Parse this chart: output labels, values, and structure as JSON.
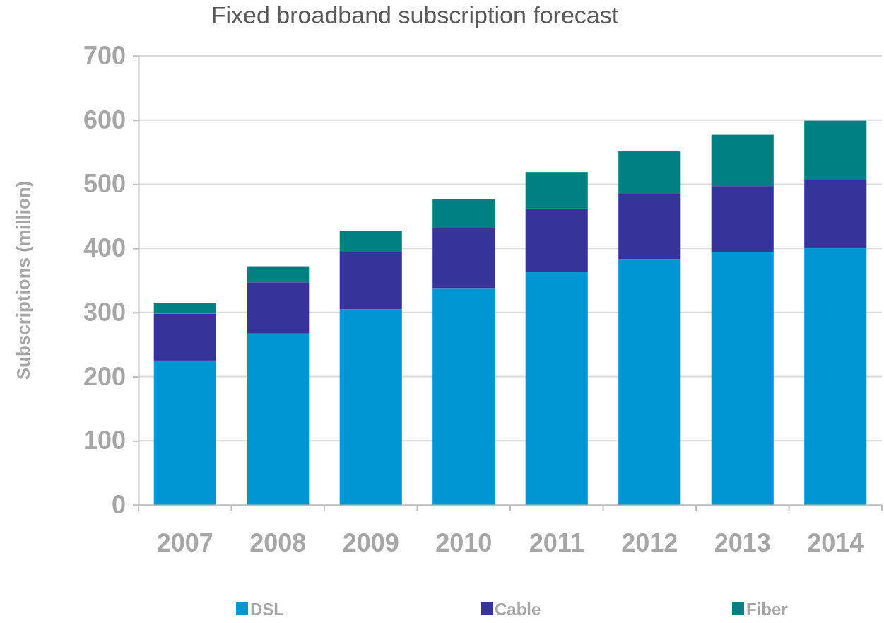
{
  "chart_data": {
    "type": "bar",
    "title": "Fixed broadband subscription forecast",
    "ylabel": "Subscriptions (million)",
    "categories": [
      "2007",
      "2008",
      "2009",
      "2010",
      "2011",
      "2012",
      "2013",
      "2014"
    ],
    "stacked": true,
    "series": [
      {
        "name": "DSL",
        "color": "#0095d3",
        "values": [
          225,
          267,
          305,
          338,
          363,
          383,
          394,
          400
        ]
      },
      {
        "name": "Cable",
        "color": "#35349a",
        "values": [
          73,
          80,
          89,
          93,
          99,
          101,
          103,
          106
        ]
      },
      {
        "name": "Fiber",
        "color": "#008080",
        "values": [
          17,
          25,
          33,
          46,
          57,
          68,
          80,
          93
        ]
      }
    ],
    "ylim": [
      0,
      700
    ],
    "yticks": [
      0,
      100,
      200,
      300,
      400,
      500,
      600,
      700
    ],
    "grid": "y",
    "legend": "bottom"
  }
}
